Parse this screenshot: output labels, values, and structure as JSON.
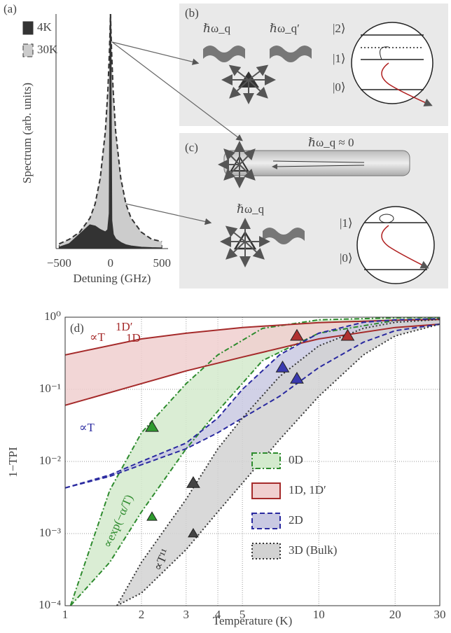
{
  "chart_data": [
    {
      "type": "area",
      "label": "(a)",
      "xlabel": "Detuning (GHz)",
      "ylabel": "Spectrum (arb. units)",
      "xlim": [
        -530,
        560
      ],
      "ylim": [
        0,
        1
      ],
      "xticks": [
        {
          "value": -500,
          "label": "−500"
        },
        0,
        500
      ],
      "x": [
        -500,
        -400,
        -300,
        -200,
        -150,
        -100,
        -50,
        -25,
        -10,
        0,
        10,
        25,
        50,
        100,
        150,
        200,
        300,
        400,
        500
      ],
      "series": [
        {
          "name": "4K",
          "color": "#333333",
          "values": [
            0.005,
            0.02,
            0.06,
            0.1,
            0.095,
            0.08,
            0.07,
            0.08,
            0.15,
            1.0,
            0.12,
            0.06,
            0.04,
            0.025,
            0.015,
            0.01,
            0.005,
            0.003,
            0.002
          ]
        },
        {
          "name": "30K",
          "color": "#cccccc",
          "line_style": "dashed",
          "values": [
            0.02,
            0.04,
            0.07,
            0.13,
            0.19,
            0.3,
            0.5,
            0.68,
            0.85,
            1.0,
            0.85,
            0.68,
            0.5,
            0.3,
            0.19,
            0.13,
            0.07,
            0.04,
            0.03
          ]
        }
      ]
    },
    {
      "type": "band",
      "label": "(d)",
      "xlabel": "Temperature (K)",
      "ylabel": "1−TPI",
      "log_x": true,
      "log_y": true,
      "grid": true,
      "xlim": [
        1,
        30
      ],
      "ylim": [
        0.0001,
        1
      ],
      "xticks": [
        1,
        2,
        3,
        4,
        5,
        10,
        20,
        30
      ],
      "yticks": [
        {
          "value": 0.0001,
          "label": "10⁻⁴"
        },
        {
          "value": 0.001,
          "label": "10⁻³"
        },
        {
          "value": 0.01,
          "label": "10⁻²"
        },
        {
          "value": 0.1,
          "label": "10⁻¹"
        },
        {
          "value": 1,
          "label": "10⁰"
        }
      ],
      "series": [
        {
          "name": "0D",
          "color": "#2e8b2e",
          "fill": "#d3eacd",
          "line_style": "dash-dot",
          "x": [
            1.05,
            1.5,
            2,
            3,
            4,
            6,
            10,
            20,
            30
          ],
          "values": [
            0.0001,
            0.0004,
            0.002,
            0.015,
            0.05,
            0.25,
            0.6,
            0.9,
            0.97
          ],
          "upper": [
            0.0001,
            0.004,
            0.025,
            0.12,
            0.3,
            0.7,
            0.92,
            0.98,
            1.0
          ]
        },
        {
          "name": "1D, 1D′",
          "color": "#a52a2a",
          "fill": "#f0cfcf",
          "line_style": "solid",
          "x": [
            1,
            2,
            3,
            5,
            10,
            20,
            30
          ],
          "values": [
            0.06,
            0.12,
            0.18,
            0.28,
            0.5,
            0.72,
            0.8
          ],
          "upper": [
            0.3,
            0.5,
            0.6,
            0.72,
            0.84,
            0.91,
            0.93
          ]
        },
        {
          "name": "2D",
          "color": "#2a2aa0",
          "fill": "#c9c9e2",
          "line_style": "dashed",
          "x": [
            1,
            1.5,
            2,
            3,
            4,
            5,
            7,
            10,
            15,
            20,
            30
          ],
          "values": [
            0.0043,
            0.0062,
            0.009,
            0.015,
            0.025,
            0.04,
            0.08,
            0.2,
            0.45,
            0.65,
            0.8
          ],
          "upper": [
            0.0043,
            0.0065,
            0.01,
            0.018,
            0.04,
            0.1,
            0.3,
            0.6,
            0.85,
            0.92,
            0.95
          ]
        },
        {
          "name": "3D (Bulk)",
          "color": "#333333",
          "fill": "#d2d2d2",
          "line_style": "dotted",
          "x": [
            1.6,
            2,
            3,
            4,
            5,
            7,
            10,
            15,
            20,
            30
          ],
          "values": [
            0.0001,
            0.00015,
            0.0006,
            0.002,
            0.005,
            0.02,
            0.08,
            0.3,
            0.55,
            0.8
          ],
          "upper": [
            0.0001,
            0.0004,
            0.003,
            0.015,
            0.04,
            0.15,
            0.4,
            0.7,
            0.85,
            0.93
          ]
        }
      ],
      "points": [
        {
          "color": "#2e9a2e",
          "x": [
            2.2,
            2.2
          ],
          "values": [
            0.03,
            0.0017
          ]
        },
        {
          "color": "#444444",
          "x": [
            3.2,
            3.2
          ],
          "values": [
            0.005,
            0.001
          ]
        },
        {
          "color": "#3a3ab0",
          "x": [
            7.2,
            8.2
          ],
          "values": [
            0.2,
            0.14
          ]
        },
        {
          "color": "#b03030",
          "x": [
            8.2,
            13
          ],
          "values": [
            0.55,
            0.55
          ]
        }
      ],
      "annotations": [
        {
          "text": "1D′",
          "color": "#a52a2a"
        },
        {
          "text": "∝T",
          "color": "#a52a2a"
        },
        {
          "text": "1D",
          "color": "#a52a2a"
        },
        {
          "text": "∝T",
          "color": "#2a2aa0"
        },
        {
          "text": "∝exp(−α/T)",
          "color": "#2e8b2e"
        },
        {
          "text": "∝T¹¹",
          "color": "#333333"
        }
      ]
    }
  ],
  "diagrams": {
    "b": {
      "label": "(b)",
      "phonon1": "ℏω_q",
      "phonon2": "ℏω_q′",
      "level2": "|2⟩",
      "level1": "|1⟩",
      "level0": "|0⟩"
    },
    "c": {
      "label": "(c)",
      "rod_phonon": "ℏω_q ≈ 0",
      "phonon": "ℏω_q",
      "level1": "|1⟩",
      "level0": "|0⟩"
    }
  }
}
